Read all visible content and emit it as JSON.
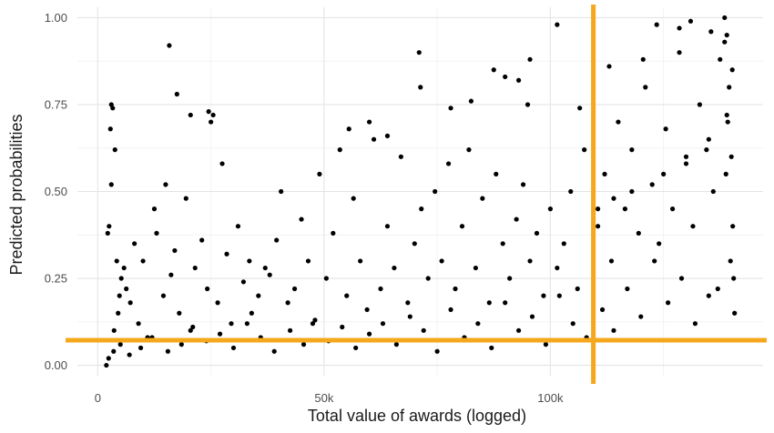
{
  "chart_data": {
    "type": "scatter",
    "title": "",
    "xlabel": "Total value of awards (logged)",
    "ylabel": "Predicted probabilities",
    "xlim": [
      -4500,
      147000
    ],
    "ylim": [
      -0.03,
      1.03
    ],
    "x_ticks": [
      {
        "value": 0,
        "label": "0"
      },
      {
        "value": 50000,
        "label": "50k"
      },
      {
        "value": 100000,
        "label": "100k"
      }
    ],
    "y_ticks": [
      {
        "value": 0,
        "label": "0.00"
      },
      {
        "value": 0.25,
        "label": "0.25"
      },
      {
        "value": 0.5,
        "label": "0.50"
      },
      {
        "value": 0.75,
        "label": "0.75"
      },
      {
        "value": 1.0,
        "label": "1.00"
      }
    ],
    "grid": true,
    "legend": "none",
    "point_color": "#000000",
    "reference_lines": [
      {
        "orientation": "vertical",
        "value": 109500,
        "color": "#f5a81c"
      },
      {
        "orientation": "horizontal",
        "value": 0.072,
        "color": "#f5a81c"
      }
    ],
    "series": [
      {
        "x": [
          3000,
          3300,
          3800,
          2800,
          2500,
          2200,
          3000,
          4200,
          5200,
          4800,
          1900,
          2400,
          3600,
          4500,
          5800,
          6300,
          7200,
          8100,
          9000,
          10000,
          11000,
          12500,
          13000,
          14500,
          15000,
          16200,
          17000,
          18000,
          19500,
          20500,
          21500,
          23000,
          24200,
          25000,
          26500,
          27500,
          28500,
          29500,
          31000,
          32200,
          33500,
          34000,
          35500,
          37000,
          38000,
          39500,
          40500,
          42000,
          43500,
          45000,
          46500,
          47500,
          49000,
          50500,
          52000,
          53500,
          55000,
          56500,
          58000,
          59500,
          61000,
          62500,
          64000,
          65500,
          67000,
          68500,
          70000,
          71500,
          73000,
          74500,
          76000,
          77500,
          79000,
          80500,
          82000,
          83500,
          85000,
          86500,
          88000,
          89500,
          91000,
          92500,
          94000,
          95500,
          97000,
          98500,
          100000,
          101500,
          103000,
          104500,
          106000,
          107500,
          110500,
          112000,
          113500,
          115000,
          116500,
          118000,
          119500,
          121000,
          122500,
          124000,
          125500,
          127000,
          128500,
          130000,
          131500,
          133000,
          134500,
          136000,
          137500,
          138500,
          139000,
          139500,
          140000,
          140300,
          140500,
          140700,
          139800,
          139200,
          138800,
          137000,
          135000,
          132000,
          129000,
          126000,
          123000,
          120000,
          117000,
          114000,
          111500,
          108000,
          105000,
          102000,
          99000,
          96000,
          93000,
          90000,
          87000,
          84000,
          81000,
          78000,
          75000,
          72000,
          69000,
          66000,
          63000,
          60000,
          57000,
          54000,
          51000,
          48000,
          45500,
          42500,
          39000,
          36000,
          33000,
          30000,
          27000,
          24000,
          21000,
          18500,
          15500,
          12000,
          9500,
          7000,
          5000,
          3500,
          15800,
          17500,
          71000,
          71300,
          87500,
          90000,
          93000,
          95500,
          101500,
          20500,
          24500,
          25500,
          55500,
          60000,
          64000,
          78000,
          82500,
          95000,
          106500,
          113000,
          120500,
          123500,
          128500,
          131000,
          135500,
          138500,
          140200,
          139000,
          135000,
          130000,
          125000,
          118000,
          114000,
          110500
        ],
        "y": [
          0.75,
          0.74,
          0.62,
          0.68,
          0.4,
          0.38,
          0.52,
          0.3,
          0.25,
          0.2,
          0.0,
          0.02,
          0.1,
          0.15,
          0.28,
          0.22,
          0.18,
          0.35,
          0.12,
          0.3,
          0.08,
          0.45,
          0.38,
          0.2,
          0.52,
          0.26,
          0.33,
          0.15,
          0.48,
          0.1,
          0.28,
          0.36,
          0.22,
          0.7,
          0.18,
          0.58,
          0.32,
          0.12,
          0.4,
          0.24,
          0.3,
          0.15,
          0.2,
          0.28,
          0.26,
          0.36,
          0.5,
          0.18,
          0.22,
          0.42,
          0.3,
          0.12,
          0.55,
          0.25,
          0.38,
          0.62,
          0.2,
          0.48,
          0.3,
          0.16,
          0.65,
          0.22,
          0.4,
          0.28,
          0.6,
          0.18,
          0.35,
          0.45,
          0.25,
          0.5,
          0.3,
          0.58,
          0.22,
          0.4,
          0.62,
          0.28,
          0.48,
          0.18,
          0.55,
          0.35,
          0.25,
          0.42,
          0.52,
          0.3,
          0.38,
          0.2,
          0.45,
          0.28,
          0.35,
          0.5,
          0.22,
          0.62,
          0.4,
          0.55,
          0.3,
          0.7,
          0.45,
          0.62,
          0.38,
          0.8,
          0.52,
          0.35,
          0.68,
          0.45,
          0.9,
          0.58,
          0.4,
          0.75,
          0.62,
          0.5,
          0.88,
          1.0,
          0.95,
          0.8,
          0.6,
          0.4,
          0.25,
          0.15,
          0.3,
          0.7,
          0.55,
          0.22,
          0.2,
          0.12,
          0.25,
          0.18,
          0.3,
          0.14,
          0.22,
          0.1,
          0.16,
          0.08,
          0.12,
          0.2,
          0.06,
          0.14,
          0.1,
          0.18,
          0.05,
          0.12,
          0.08,
          0.16,
          0.04,
          0.1,
          0.14,
          0.06,
          0.12,
          0.09,
          0.05,
          0.11,
          0.07,
          0.13,
          0.06,
          0.1,
          0.04,
          0.08,
          0.12,
          0.05,
          0.09,
          0.07,
          0.11,
          0.06,
          0.04,
          0.08,
          0.05,
          0.03,
          0.06,
          0.04,
          0.92,
          0.78,
          0.9,
          0.8,
          0.85,
          0.83,
          0.82,
          0.88,
          0.98,
          0.72,
          0.73,
          0.72,
          0.68,
          0.7,
          0.66,
          0.74,
          0.76,
          0.75,
          0.74,
          0.86,
          0.88,
          0.98,
          0.97,
          0.99,
          0.96,
          0.93,
          0.85,
          0.72,
          0.65,
          0.6,
          0.55,
          0.5,
          0.48,
          0.45
        ]
      }
    ]
  }
}
